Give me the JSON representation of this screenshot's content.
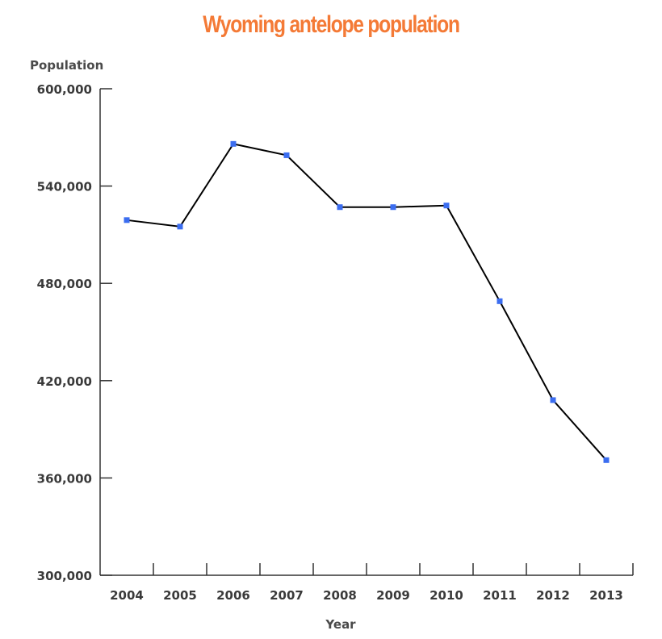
{
  "chart_data": {
    "type": "line",
    "title": "Wyoming antelope population",
    "xlabel": "Year",
    "ylabel": "Population",
    "categories": [
      "2004",
      "2005",
      "2006",
      "2007",
      "2008",
      "2009",
      "2010",
      "2011",
      "2012",
      "2013"
    ],
    "series": [
      {
        "values": [
          519000,
          515000,
          566000,
          559000,
          527000,
          527000,
          528000,
          469000,
          408000,
          371000
        ]
      }
    ],
    "ylim": [
      300000,
      600000
    ],
    "yticks": [
      "300,000",
      "360,000",
      "420,000",
      "480,000",
      "540,000",
      "600,000"
    ],
    "ytick_values": [
      300000,
      360000,
      420000,
      480000,
      540000,
      600000
    ],
    "grid": false,
    "legend": "none",
    "colors": {
      "title": "#f47a36",
      "line": "#000000",
      "marker": "#3b6df0",
      "axis": "#333333"
    }
  }
}
